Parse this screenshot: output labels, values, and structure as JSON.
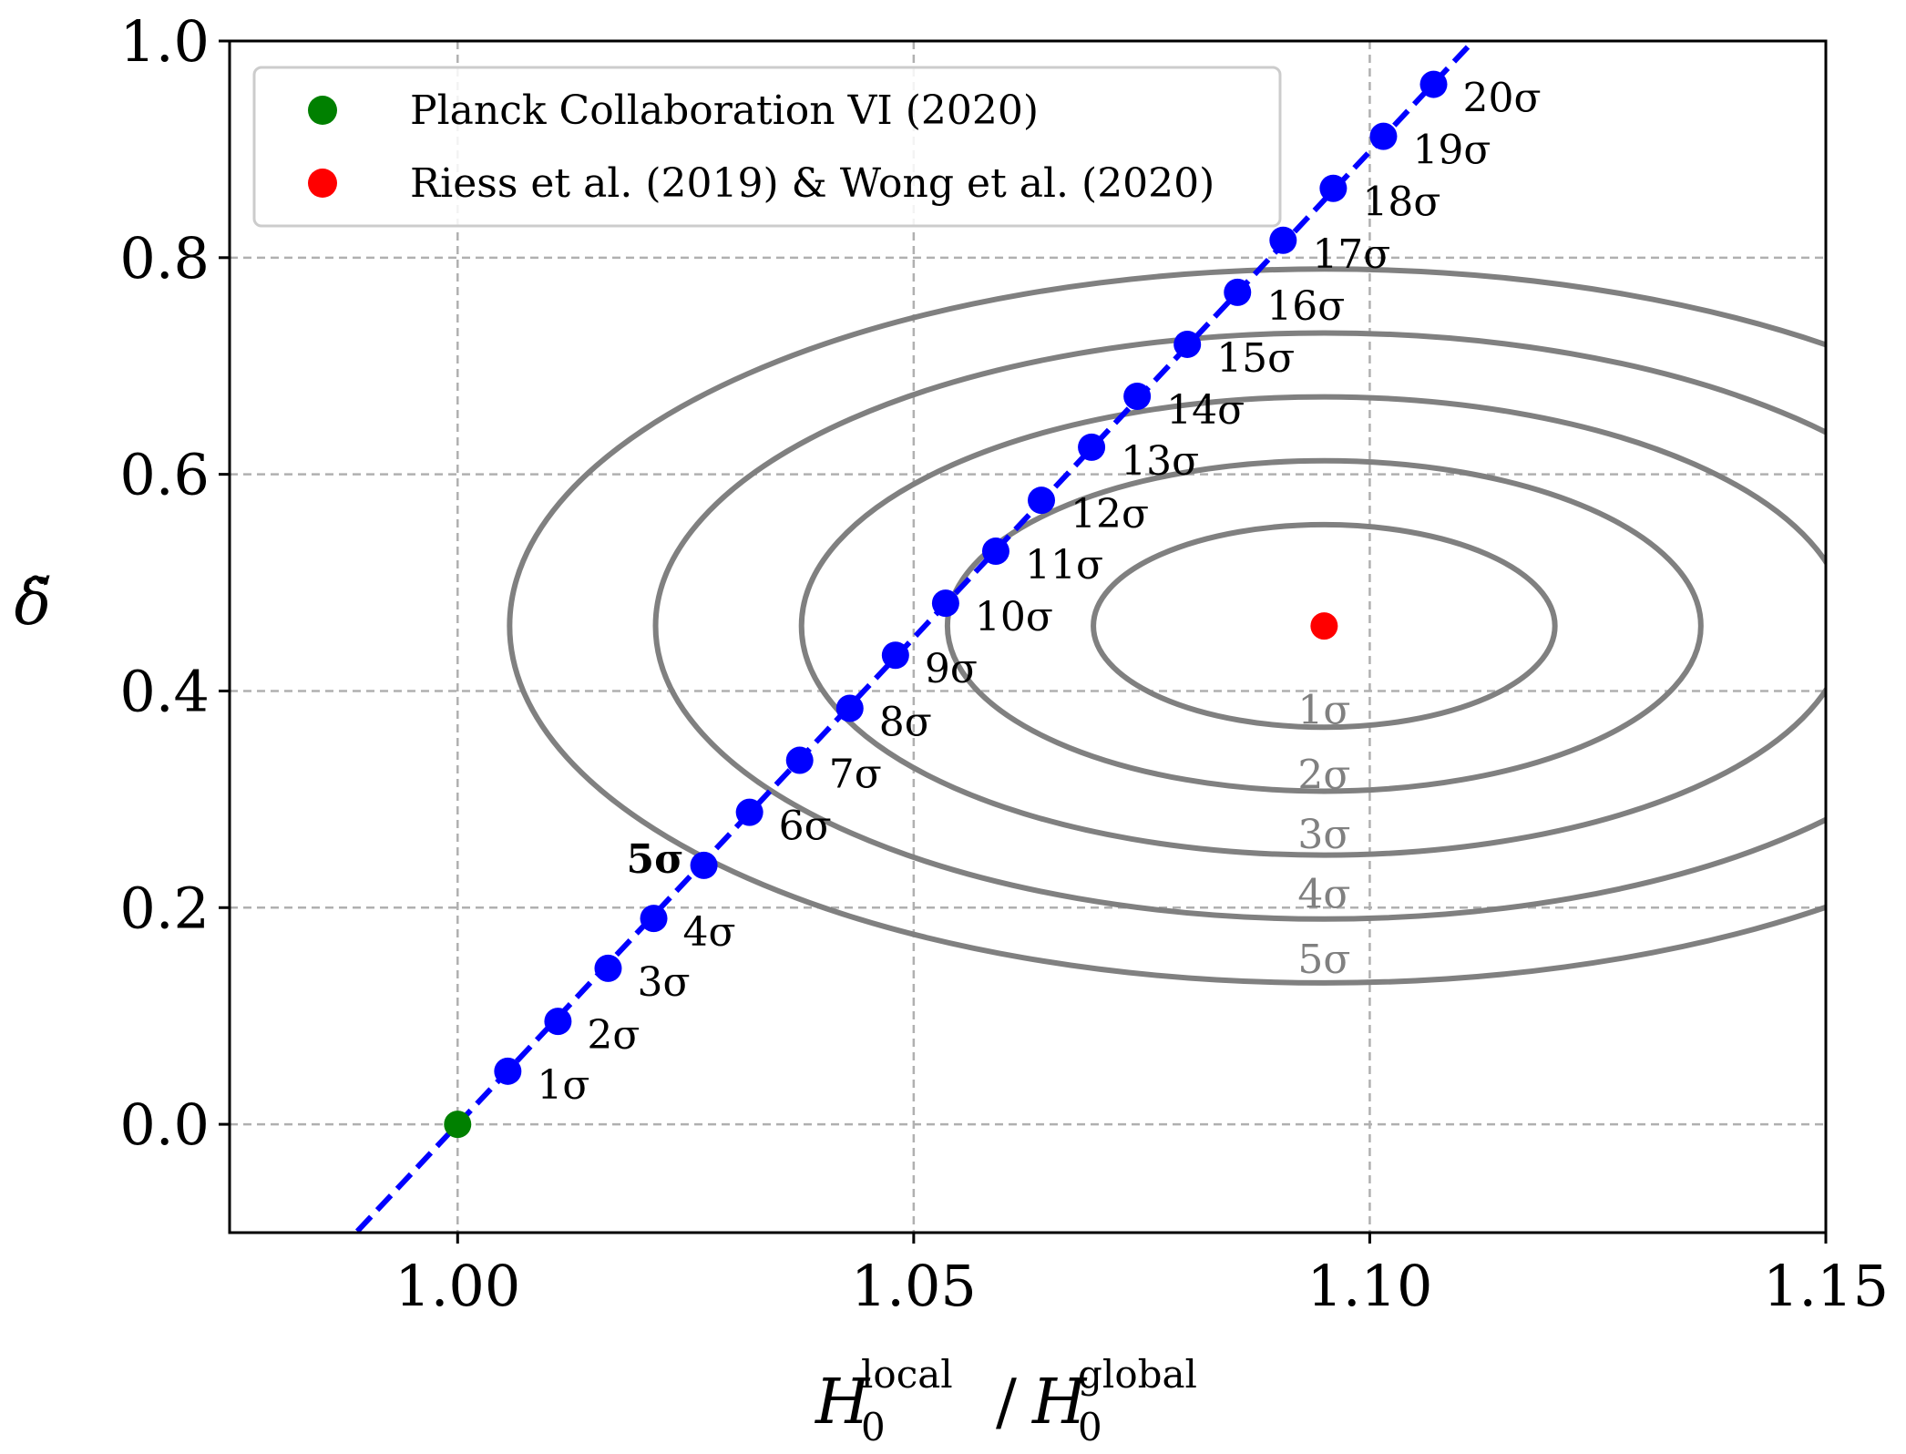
{
  "chart_data": {
    "type": "scatter",
    "xlabel_parts": {
      "base": "H",
      "sub": "0",
      "sup_left": "local",
      "sep": "/",
      "sup_right": "global"
    },
    "ylabel": "δ̃",
    "xlim": [
      0.975,
      1.15
    ],
    "ylim": [
      -0.1,
      1.0
    ],
    "xticks": [
      1.0,
      1.05,
      1.1,
      1.15
    ],
    "xtick_labels": [
      "1.00",
      "1.05",
      "1.10",
      "1.15"
    ],
    "yticks": [
      0.0,
      0.2,
      0.4,
      0.6,
      0.8,
      1.0
    ],
    "ytick_labels": [
      "0.0",
      "0.2",
      "0.4",
      "0.6",
      "0.8",
      "1.0"
    ],
    "grid": true,
    "legend_position": "top-left",
    "legend": [
      {
        "label": "Planck Collaboration VI (2020)",
        "color": "#008000"
      },
      {
        "label": "Riess et al. (2019) & Wong et al. (2020)",
        "color": "#ff0000"
      }
    ],
    "planck_point": {
      "x": 1.0,
      "y": 0.0,
      "color": "#008000"
    },
    "riess_point": {
      "x": 1.095,
      "y": 0.46,
      "color": "#ff0000"
    },
    "contours": {
      "center": [
        1.095,
        0.46
      ],
      "semi_axis_x": [
        0.0253,
        0.0413,
        0.0573,
        0.0733,
        0.0893
      ],
      "semi_axis_y": [
        0.0935,
        0.1525,
        0.2115,
        0.2705,
        0.3295
      ],
      "labels": [
        "1σ",
        "2σ",
        "3σ",
        "4σ",
        "5σ"
      ],
      "label_y": [
        0.385,
        0.325,
        0.27,
        0.215,
        0.155
      ],
      "color": "#808080"
    },
    "line": {
      "slope": 8.98,
      "x_start": 0.989,
      "x_end": 1.1125,
      "color": "#0000ff",
      "style": "dashed"
    },
    "sigma_points": {
      "color": "#0000ff",
      "x": [
        1.0055,
        1.011,
        1.0165,
        1.0215,
        1.027,
        1.032,
        1.0375,
        1.043,
        1.048,
        1.0535,
        1.059,
        1.064,
        1.0695,
        1.0745,
        1.08,
        1.0855,
        1.0905,
        1.096,
        1.1015,
        1.107
      ],
      "y": [
        0.049,
        0.095,
        0.144,
        0.19,
        0.239,
        0.288,
        0.336,
        0.384,
        0.433,
        0.481,
        0.529,
        0.576,
        0.625,
        0.672,
        0.72,
        0.768,
        0.816,
        0.864,
        0.912,
        0.96
      ],
      "labels": [
        "1σ",
        "2σ",
        "3σ",
        "4σ",
        "5σ",
        "6σ",
        "7σ",
        "8σ",
        "9σ",
        "10σ",
        "11σ",
        "12σ",
        "13σ",
        "14σ",
        "15σ",
        "16σ",
        "17σ",
        "18σ",
        "19σ",
        "20σ"
      ],
      "bold_index": 4
    }
  }
}
